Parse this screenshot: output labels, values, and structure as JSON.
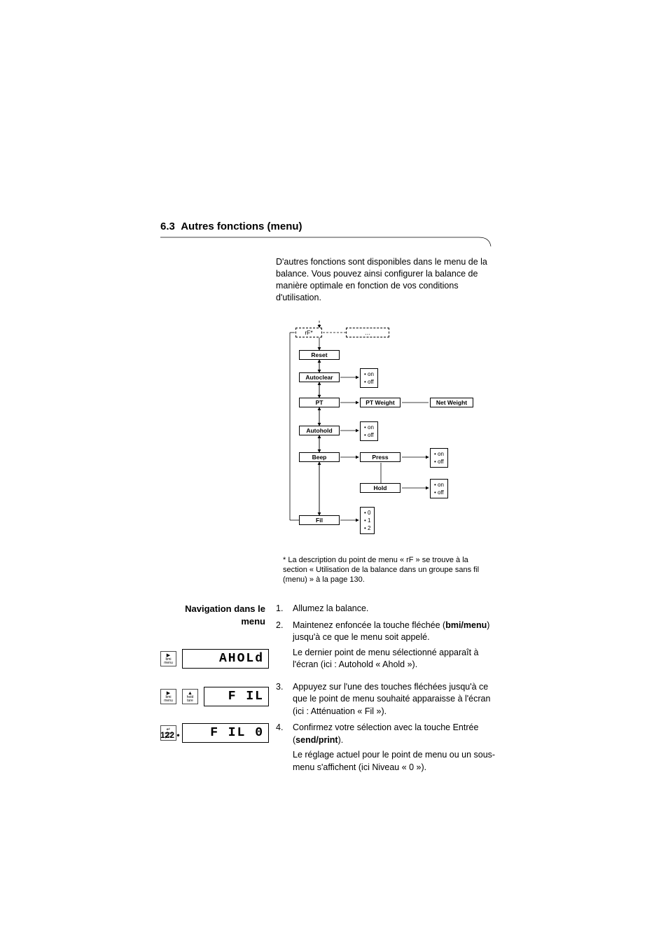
{
  "section": {
    "number": "6.3",
    "title": "Autres fonctions (menu)"
  },
  "intro": "D'autres fonctions sont disponibles dans le menu de la balance. Vous pouvez ainsi configurer la balance de manière optimale en fonction de vos conditions d'utilisation.",
  "diagram": {
    "top_dashed_left": "rF*",
    "top_dashed_right": "…",
    "items": {
      "reset": "Reset",
      "autoclear": "Autoclear",
      "pt": "PT",
      "pt_weight": "PT Weight",
      "net_weight": "Net Weight",
      "autohold": "Autohold",
      "beep": "Beep",
      "press": "Press",
      "hold": "Hold",
      "fil": "Fil"
    },
    "options": {
      "on": "on",
      "off": "off",
      "zero": "0",
      "one": "1",
      "two": "2"
    }
  },
  "footnote": "* La description du point de menu « rF » se trouve à la section « Utilisation de la balance dans un groupe sans fil (menu) » à la page 130.",
  "side_heading": {
    "line1": "Navigation dans le",
    "line2": "menu"
  },
  "steps": {
    "s1": "Allumez la balance.",
    "s2a": "Maintenez enfoncée la touche fléchée (",
    "s2b": "bmi/menu",
    "s2c": ") jusqu'à ce que le menu soit appelé.",
    "s2d": "Le dernier point de menu sélectionné apparaît à l'écran (ici : Autohold « Ahold »).",
    "s3": "Appuyez sur l'une des touches fléchées jusqu'à ce que le point de menu souhaité apparaisse à l'écran (ici : Atténuation « Fil »).",
    "s4a": "Confirmez votre sélection avec la touche Entrée (",
    "s4b": "send/print",
    "s4c": ").",
    "s4d": "Le réglage actuel pour le point de menu ou un sous-menu s'affichent (ici Niveau « 0 »)."
  },
  "buttons": {
    "bmi_arrow": "▶",
    "bmi_label": "bmi\nmenu",
    "hold_arrow": "▲",
    "hold_label": "hold\ntare",
    "send_arrow": "↵",
    "send_label": "send\nprint"
  },
  "lcd": {
    "ahold": "AHOLd",
    "fil": "F IL",
    "fil0": "F IL   0"
  },
  "illus_tops": {
    "row1": 66,
    "row2": 120,
    "row3": 172
  },
  "colors": {
    "text": "#000000",
    "bg": "#ffffff",
    "line": "#000000"
  },
  "page_number": "122 •"
}
